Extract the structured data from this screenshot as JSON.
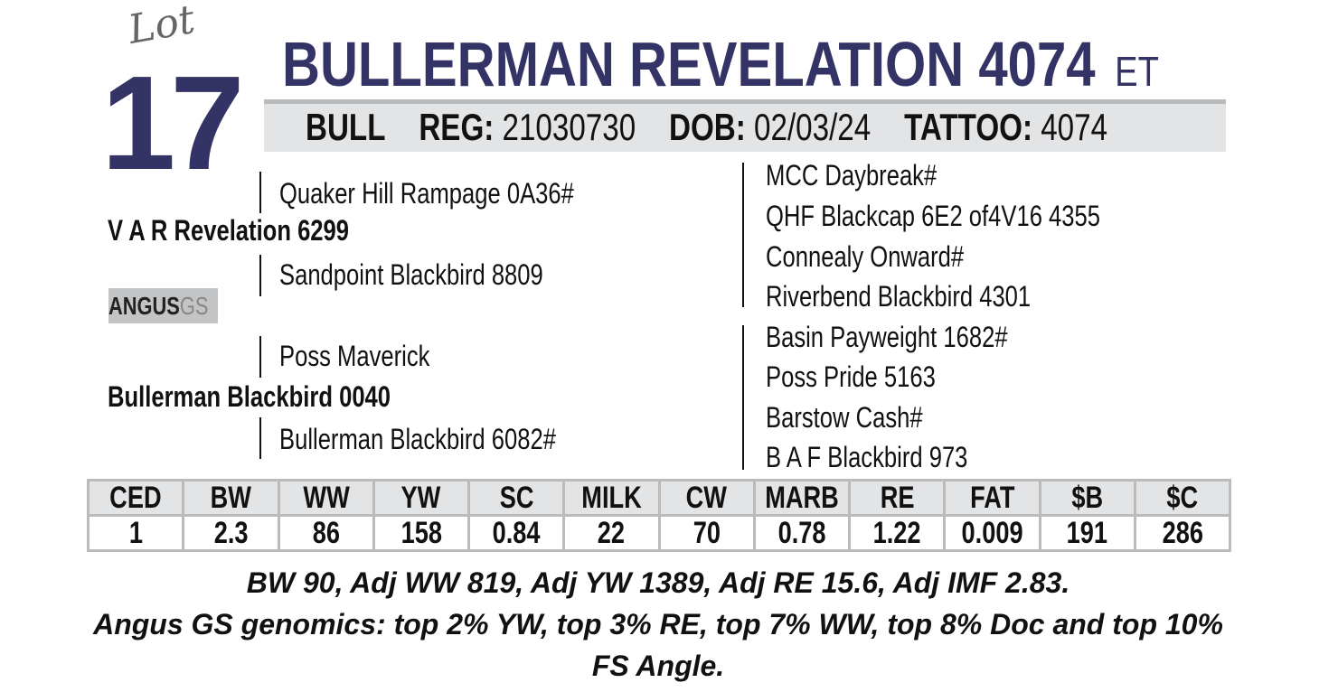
{
  "lot": {
    "label": "Lot",
    "number": "17"
  },
  "animal": {
    "name": "BULLERMAN REVELATION 4074",
    "suffix": "ET"
  },
  "info": {
    "sex": "BULL",
    "reg_label": "REG:",
    "reg": "21030730",
    "dob_label": "DOB:",
    "dob": "02/03/24",
    "tattoo_label": "TATTOO:",
    "tattoo": "4074"
  },
  "pedigree": {
    "sire": "V A R Revelation 6299",
    "sire_sire": "Quaker Hill Rampage 0A36#",
    "sire_dam": "Sandpoint Blackbird 8809",
    "dam": "Bullerman Blackbird 0040",
    "dam_sire": "Poss Maverick",
    "dam_dam": "Bullerman Blackbird 6082#",
    "great_grandparents": [
      "MCC Daybreak#",
      "QHF Blackcap 6E2 of4V16 4355",
      "Connealy Onward#",
      "Riverbend Blackbird 4301",
      "Basin Payweight 1682#",
      "Poss Pride 5163",
      "Barstow Cash#",
      "B A F Blackbird 973"
    ]
  },
  "logo": {
    "text": "ANGUS",
    "suffix": "GS"
  },
  "epds": {
    "headers": [
      "CED",
      "BW",
      "WW",
      "YW",
      "SC",
      "MILK",
      "CW",
      "MARB",
      "RE",
      "FAT",
      "$B",
      "$C"
    ],
    "values": [
      "1",
      "2.3",
      "86",
      "158",
      "0.84",
      "22",
      "70",
      "0.78",
      "1.22",
      "0.009",
      "191",
      "286"
    ]
  },
  "notes": {
    "line1": "BW 90, Adj WW 819, Adj YW 1389, Adj RE 15.6, Adj IMF 2.83.",
    "line2": "Angus GS genomics: top 2% YW, top 3% RE, top 7% WW, top 8% Doc and top 10% FS Angle."
  },
  "colors": {
    "brand": "#333366",
    "bar": "#e3e4e6"
  }
}
